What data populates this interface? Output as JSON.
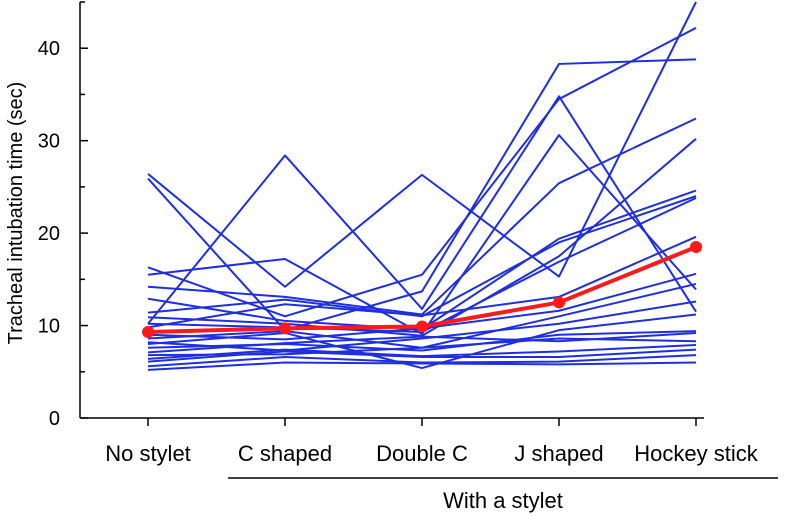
{
  "chart_data": {
    "type": "line",
    "xlabel": "",
    "ylabel": "Tracheal intubation time (sec)",
    "group_label": "With a stylet",
    "group_categories": [
      "C shaped",
      "Double C",
      "J shaped",
      "Hockey stick"
    ],
    "categories": [
      "No stylet",
      "C shaped",
      "Double C",
      "J shaped",
      "Hockey stick"
    ],
    "ylim": [
      0,
      45
    ],
    "yticks": [
      0,
      10,
      20,
      30,
      40
    ],
    "grid": false,
    "colors": {
      "individual": "#1f2fe0",
      "mean": "#ff1a1a"
    },
    "series": [
      {
        "values": [
          26.4,
          14.2,
          26.3,
          15.3,
          45.0
        ]
      },
      {
        "values": [
          25.9,
          9.5,
          13.7,
          38.3,
          38.8
        ]
      },
      {
        "values": [
          10.2,
          28.4,
          11.8,
          34.8,
          11.5
        ]
      },
      {
        "values": [
          16.3,
          11.0,
          15.5,
          34.5,
          42.2
        ]
      },
      {
        "values": [
          15.5,
          17.2,
          9.1,
          30.6,
          13.9
        ]
      },
      {
        "values": [
          14.2,
          13.1,
          11.2,
          25.4,
          32.4
        ]
      },
      {
        "values": [
          12.9,
          10.5,
          9.6,
          19.4,
          24.6
        ]
      },
      {
        "values": [
          11.4,
          12.8,
          11.0,
          19.0,
          24.0
        ]
      },
      {
        "values": [
          10.9,
          10.2,
          8.9,
          17.5,
          30.2
        ]
      },
      {
        "values": [
          10.2,
          9.8,
          9.3,
          16.9,
          23.8
        ]
      },
      {
        "values": [
          9.8,
          12.3,
          11.1,
          13.1,
          19.6
        ]
      },
      {
        "values": [
          9.0,
          8.5,
          9.7,
          11.6,
          15.6
        ]
      },
      {
        "values": [
          8.6,
          9.4,
          7.6,
          11.0,
          14.5
        ]
      },
      {
        "values": [
          8.2,
          7.3,
          8.6,
          10.2,
          12.6
        ]
      },
      {
        "values": [
          8.0,
          9.2,
          5.4,
          9.5,
          11.2
        ]
      },
      {
        "values": [
          7.6,
          8.0,
          7.3,
          9.0,
          9.4
        ]
      },
      {
        "values": [
          7.1,
          8.1,
          8.8,
          8.3,
          9.2
        ]
      },
      {
        "values": [
          6.8,
          6.9,
          7.6,
          8.6,
          8.3
        ]
      },
      {
        "values": [
          6.4,
          7.4,
          6.7,
          7.2,
          7.9
        ]
      },
      {
        "values": [
          6.1,
          7.2,
          6.6,
          6.6,
          7.4
        ]
      },
      {
        "values": [
          5.6,
          6.6,
          6.0,
          6.1,
          6.8
        ]
      },
      {
        "values": [
          5.2,
          6.0,
          5.9,
          5.8,
          6.0
        ]
      }
    ],
    "mean_series": {
      "values": [
        9.3,
        9.7,
        9.9,
        12.5,
        18.5
      ]
    }
  }
}
